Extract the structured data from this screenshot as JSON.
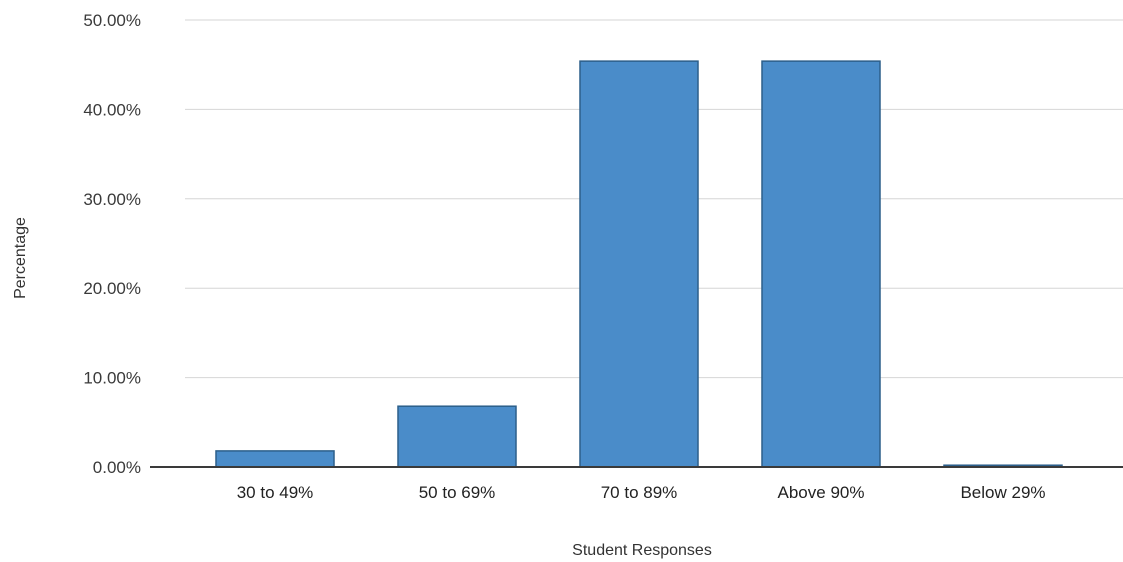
{
  "chart_data": {
    "type": "bar",
    "categories": [
      "30 to 49%",
      "50 to 69%",
      "70 to 89%",
      "Above 90%",
      "Below 29%"
    ],
    "values": [
      1.8,
      6.8,
      45.4,
      45.4,
      0.2
    ],
    "ylim": [
      0,
      50
    ],
    "yticks": [
      0,
      10,
      20,
      30,
      40,
      50
    ],
    "ytick_labels": [
      "0.00%",
      "10.00%",
      "20.00%",
      "30.00%",
      "40.00%",
      "50.00%"
    ],
    "xlabel": "Student Responses",
    "ylabel": "Percentage",
    "grid": true,
    "legend": "none",
    "bar_color": "#4a8cc9"
  }
}
